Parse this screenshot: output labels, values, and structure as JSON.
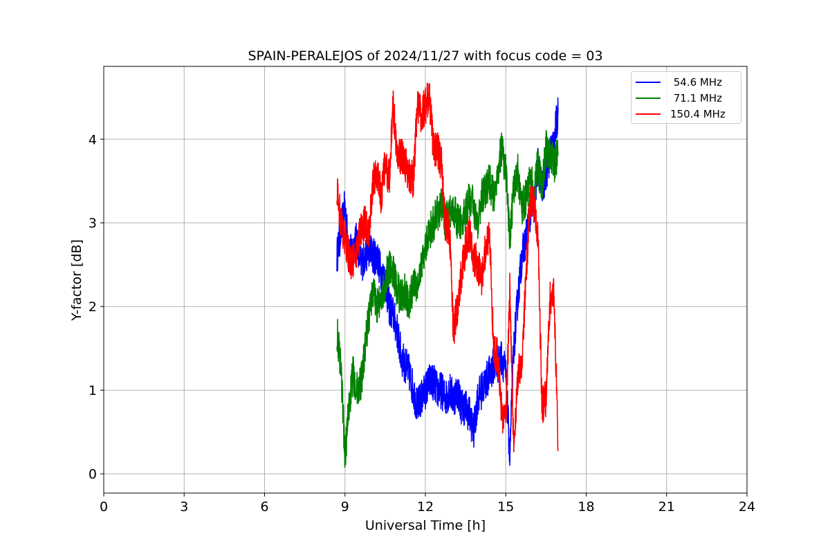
{
  "chart_data": {
    "type": "line",
    "title": "SPAIN-PERALEJOS of 2024/11/27 with focus code = 03",
    "xlabel": "Universal Time [h]",
    "ylabel": "Y-factor [dB]",
    "xlim": [
      0,
      24
    ],
    "ylim": [
      -0.23,
      4.87
    ],
    "xticks": [
      "0",
      "3",
      "6",
      "9",
      "12",
      "15",
      "18",
      "21",
      "24"
    ],
    "yticks": [
      "0",
      "1",
      "2",
      "3",
      "4"
    ],
    "grid": true,
    "legend_position": "top-right",
    "series": [
      {
        "name": " 54.6 MHz",
        "color": "#0000ff",
        "x": [
          8.7,
          8.85,
          9.0,
          9.15,
          9.3,
          9.45,
          9.6,
          9.75,
          9.9,
          10.05,
          10.2,
          10.35,
          10.5,
          10.65,
          10.8,
          10.95,
          11.1,
          11.25,
          11.4,
          11.55,
          11.7,
          11.85,
          12.0,
          12.15,
          12.3,
          12.45,
          12.6,
          12.75,
          12.9,
          13.05,
          13.2,
          13.35,
          13.5,
          13.65,
          13.8,
          13.95,
          14.1,
          14.25,
          14.4,
          14.55,
          14.7,
          14.85,
          15.0,
          15.15,
          15.3,
          15.45,
          15.6,
          15.75,
          15.9,
          16.05,
          16.2,
          16.35,
          16.5,
          16.65,
          16.8,
          16.95
        ],
        "y": [
          2.6,
          2.9,
          3.2,
          2.6,
          2.7,
          2.8,
          2.5,
          2.6,
          2.7,
          2.6,
          2.6,
          2.4,
          2.3,
          2.0,
          1.9,
          1.7,
          1.4,
          1.3,
          1.2,
          1.0,
          0.8,
          0.9,
          1.0,
          1.1,
          1.1,
          1.0,
          1.0,
          0.9,
          1.0,
          0.9,
          1.0,
          0.8,
          0.8,
          0.7,
          0.5,
          0.9,
          1.0,
          1.1,
          1.2,
          1.3,
          1.3,
          1.4,
          1.2,
          0.2,
          1.5,
          2.1,
          2.6,
          2.8,
          3.1,
          3.2,
          3.7,
          3.4,
          3.6,
          3.8,
          4.0,
          4.3
        ]
      },
      {
        "name": " 71.1 MHz",
        "color": "#008000",
        "x": [
          8.7,
          8.85,
          9.0,
          9.15,
          9.3,
          9.45,
          9.6,
          9.75,
          9.9,
          10.05,
          10.2,
          10.35,
          10.5,
          10.65,
          10.8,
          10.95,
          11.1,
          11.25,
          11.4,
          11.55,
          11.7,
          11.85,
          12.0,
          12.15,
          12.3,
          12.45,
          12.6,
          12.75,
          12.9,
          13.05,
          13.2,
          13.35,
          13.5,
          13.65,
          13.8,
          13.95,
          14.1,
          14.25,
          14.4,
          14.55,
          14.7,
          14.85,
          15.0,
          15.15,
          15.3,
          15.45,
          15.6,
          15.75,
          15.9,
          16.05,
          16.2,
          16.35,
          16.5,
          16.65,
          16.8,
          16.95
        ],
        "y": [
          1.7,
          1.3,
          0.2,
          0.8,
          1.2,
          1.0,
          1.1,
          1.5,
          1.9,
          2.2,
          2.0,
          2.1,
          2.3,
          2.5,
          2.4,
          2.2,
          2.1,
          2.2,
          2.0,
          2.3,
          2.2,
          2.5,
          2.7,
          2.9,
          3.0,
          3.1,
          3.2,
          3.0,
          3.1,
          3.2,
          3.0,
          3.0,
          3.1,
          3.3,
          3.2,
          3.0,
          3.3,
          3.4,
          3.5,
          3.3,
          3.6,
          3.9,
          3.6,
          2.8,
          3.4,
          3.6,
          3.2,
          3.3,
          3.5,
          3.4,
          3.7,
          3.4,
          3.9,
          3.8,
          3.7,
          3.8
        ]
      },
      {
        "name": "150.4 MHz",
        "color": "#ff0000",
        "x": [
          8.7,
          8.85,
          9.0,
          9.15,
          9.3,
          9.45,
          9.6,
          9.75,
          9.9,
          10.05,
          10.2,
          10.35,
          10.5,
          10.65,
          10.8,
          10.95,
          11.1,
          11.25,
          11.4,
          11.55,
          11.7,
          11.85,
          12.0,
          12.15,
          12.3,
          12.45,
          12.6,
          12.75,
          12.9,
          13.05,
          13.2,
          13.35,
          13.5,
          13.65,
          13.8,
          13.95,
          14.1,
          14.25,
          14.4,
          14.55,
          14.7,
          14.85,
          15.0,
          15.15,
          15.3,
          15.45,
          15.6,
          15.75,
          15.9,
          16.05,
          16.2,
          16.35,
          16.5,
          16.65,
          16.8,
          16.95
        ],
        "y": [
          3.4,
          3.0,
          2.8,
          2.6,
          2.5,
          2.7,
          2.9,
          3.0,
          2.9,
          3.5,
          3.6,
          3.3,
          3.7,
          3.5,
          4.4,
          3.8,
          3.8,
          3.7,
          3.6,
          3.5,
          4.4,
          4.3,
          4.4,
          4.5,
          3.9,
          3.9,
          3.7,
          3.0,
          2.9,
          1.7,
          2.0,
          2.4,
          2.7,
          2.9,
          2.6,
          2.5,
          2.3,
          2.7,
          2.8,
          1.5,
          1.4,
          0.7,
          0.6,
          2.2,
          0.3,
          1.2,
          1.3,
          2.3,
          3.3,
          3.2,
          2.9,
          0.8,
          0.9,
          2.1,
          2.2,
          0.3
        ]
      }
    ]
  }
}
